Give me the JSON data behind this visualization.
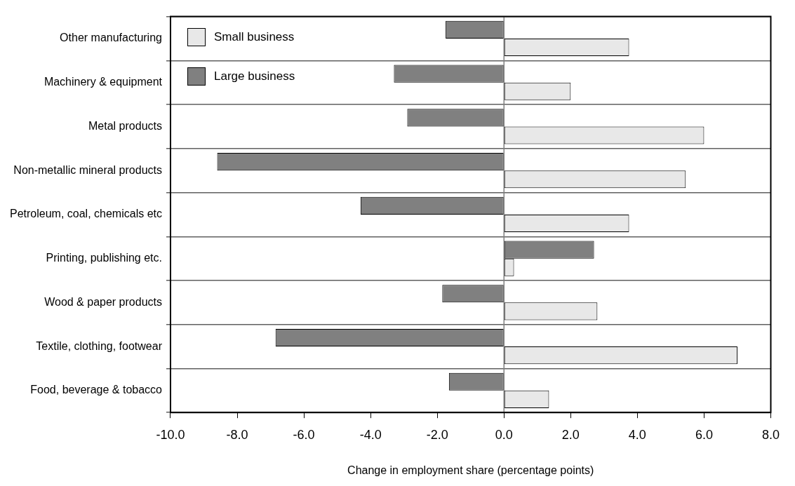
{
  "chart_data": {
    "type": "bar",
    "orientation": "horizontal",
    "xlabel": "Change in employment share (percentage points)",
    "categories": [
      "Other manufacturing",
      "Machinery & equipment",
      "Metal products",
      "Non-metallic mineral products",
      "Petroleum, coal, chemicals etc",
      "Printing, publishing etc.",
      "Wood & paper products",
      "Textile, clothing, footwear",
      "Food, beverage & tobacco"
    ],
    "series": [
      {
        "name": "Large business",
        "color": "#808080",
        "values": [
          -1.75,
          -3.3,
          -2.9,
          -8.6,
          -4.3,
          2.7,
          -1.85,
          -6.85,
          -1.65
        ]
      },
      {
        "name": "Small business",
        "color": "#e8e8e8",
        "values": [
          3.75,
          2.0,
          6.0,
          5.45,
          3.75,
          0.3,
          2.8,
          7.0,
          1.35
        ]
      }
    ],
    "xlim": [
      -10,
      8
    ],
    "xticks": [
      {
        "value": -10,
        "label": "-10.0"
      },
      {
        "value": -8,
        "label": "-8.0"
      },
      {
        "value": -6,
        "label": "-6.0"
      },
      {
        "value": -4,
        "label": "-4.0"
      },
      {
        "value": -2,
        "label": "-2.0"
      },
      {
        "value": 0,
        "label": "0.0"
      },
      {
        "value": 2,
        "label": "2.0"
      },
      {
        "value": 4,
        "label": "4.0"
      },
      {
        "value": 6,
        "label": "6.0"
      },
      {
        "value": 8,
        "label": "8.0"
      }
    ],
    "grid": "y",
    "legend": "top left",
    "ref_lines": [
      {
        "axis": "x",
        "value": 0,
        "color": "#808080"
      }
    ]
  }
}
